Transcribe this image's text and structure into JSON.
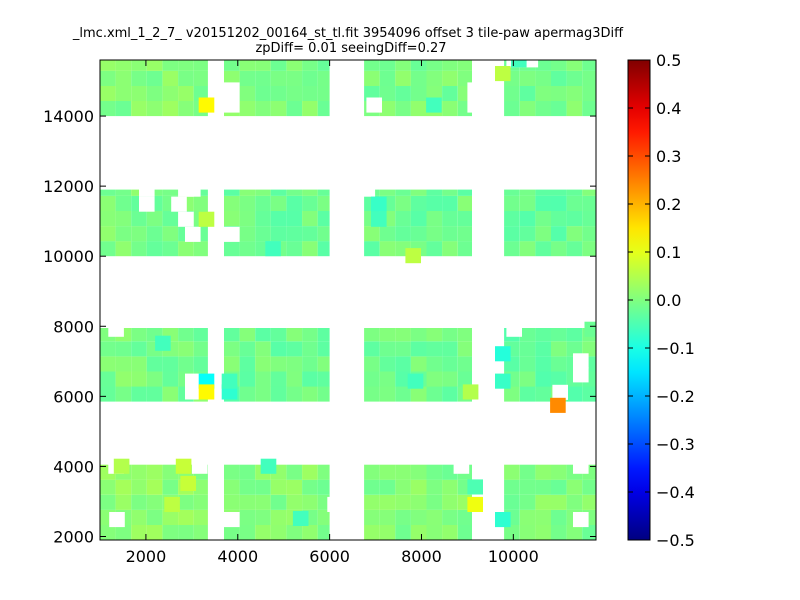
{
  "chart_data": {
    "type": "heatmap",
    "title": "_lmc.xml_1_2_7_ v20151202_00164_st_tl.fit 3954096 offset 3 tile-paw apermag3Diff",
    "subtitle": "zpDiff= 0.01 seeingDiff=0.27",
    "xlabel": "",
    "ylabel": "",
    "xlim": [
      1000,
      11800
    ],
    "ylim": [
      1900,
      15600
    ],
    "x_ticks": [
      2000,
      4000,
      6000,
      8000,
      10000
    ],
    "y_ticks": [
      2000,
      4000,
      6000,
      8000,
      10000,
      12000,
      14000
    ],
    "colorbar": {
      "colormap": "jet",
      "vmin": -0.5,
      "vmax": 0.5,
      "ticks": [
        "0.5",
        "0.4",
        "0.3",
        "0.2",
        "0.1",
        "0.0",
        "−0.1",
        "−0.2",
        "−0.3",
        "−0.4",
        "−0.5"
      ]
    },
    "bin_size": [
      340,
      430
    ],
    "block_rows": [
      {
        "y_range": [
          14000,
          15600
        ],
        "baseline": 0.0
      },
      {
        "y_range": [
          10000,
          11900
        ],
        "baseline": -0.02
      },
      {
        "y_range": [
          5850,
          7950
        ],
        "baseline": -0.02
      },
      {
        "y_range": [
          1900,
          4050
        ],
        "baseline": 0.02
      }
    ],
    "block_cols": [
      {
        "x_range": [
          1000,
          3350
        ],
        "baseline": 0.01
      },
      {
        "x_range": [
          3700,
          6000
        ],
        "baseline": -0.01
      },
      {
        "x_range": [
          6750,
          9100
        ],
        "baseline": -0.01
      },
      {
        "x_range": [
          9800,
          11800
        ],
        "baseline": -0.02
      }
    ],
    "missing_bins": [
      {
        "x": 1850,
        "y": 11700
      },
      {
        "x": 1850,
        "y": 11270
      },
      {
        "x": 2700,
        "y": 11700
      },
      {
        "x": 2700,
        "y": 10840
      },
      {
        "x": 2850,
        "y": 10410
      },
      {
        "x": 3700,
        "y": 10410
      },
      {
        "x": 2550,
        "y": 11270
      },
      {
        "x": 2850,
        "y": 11700
      },
      {
        "x": 1180,
        "y": 7700
      },
      {
        "x": 2850,
        "y": 6220
      },
      {
        "x": 2850,
        "y": 5910
      },
      {
        "x": 1180,
        "y": 3790
      },
      {
        "x": 3000,
        "y": 3790
      },
      {
        "x": 1200,
        "y": 2270
      },
      {
        "x": 5950,
        "y": 2700
      },
      {
        "x": 6150,
        "y": 2270
      },
      {
        "x": 6150,
        "y": 2700
      },
      {
        "x": 3700,
        "y": 2270
      },
      {
        "x": 3700,
        "y": 14100
      },
      {
        "x": 3700,
        "y": 14530
      },
      {
        "x": 6800,
        "y": 14100
      },
      {
        "x": 9000,
        "y": 14100
      },
      {
        "x": 9000,
        "y": 14530
      },
      {
        "x": 9450,
        "y": 15390
      },
      {
        "x": 9850,
        "y": 15390
      },
      {
        "x": 10200,
        "y": 15390
      },
      {
        "x": 6650,
        "y": 11700
      },
      {
        "x": 9150,
        "y": 10840
      },
      {
        "x": 9150,
        "y": 11270
      },
      {
        "x": 9850,
        "y": 7700
      },
      {
        "x": 10850,
        "y": 5900
      },
      {
        "x": 11300,
        "y": 6400
      },
      {
        "x": 11300,
        "y": 6800
      },
      {
        "x": 9150,
        "y": 7300
      },
      {
        "x": 9150,
        "y": 6800
      },
      {
        "x": 8700,
        "y": 3790
      },
      {
        "x": 9100,
        "y": 3790
      },
      {
        "x": 11300,
        "y": 2270
      },
      {
        "x": 11300,
        "y": 3790
      },
      {
        "x": 9450,
        "y": 2270
      },
      {
        "x": 9450,
        "y": 2700
      },
      {
        "x": 9150,
        "y": 2270
      },
      {
        "x": 9150,
        "y": 2700
      }
    ],
    "outlier_bins": [
      {
        "x": 3150,
        "y": 14100,
        "value": 0.13
      },
      {
        "x": 3150,
        "y": 10840,
        "value": 0.06
      },
      {
        "x": 3150,
        "y": 6220,
        "value": -0.12
      },
      {
        "x": 3150,
        "y": 5910,
        "value": 0.13
      },
      {
        "x": 3650,
        "y": 5910,
        "value": -0.08
      },
      {
        "x": 3650,
        "y": 6220,
        "value": -0.06
      },
      {
        "x": 4500,
        "y": 3790,
        "value": -0.06
      },
      {
        "x": 7650,
        "y": 9800,
        "value": 0.06
      },
      {
        "x": 6900,
        "y": 10840,
        "value": -0.06
      },
      {
        "x": 6900,
        "y": 11270,
        "value": -0.07
      },
      {
        "x": 7700,
        "y": 6220,
        "value": -0.06
      },
      {
        "x": 8100,
        "y": 14100,
        "value": -0.06
      },
      {
        "x": 8900,
        "y": 5910,
        "value": 0.05
      },
      {
        "x": 9000,
        "y": 2700,
        "value": 0.11
      },
      {
        "x": 9000,
        "y": 3200,
        "value": -0.05
      },
      {
        "x": 9600,
        "y": 7000,
        "value": -0.09
      },
      {
        "x": 9600,
        "y": 6220,
        "value": -0.07
      },
      {
        "x": 9600,
        "y": 2270,
        "value": -0.08
      },
      {
        "x": 9600,
        "y": 15000,
        "value": 0.06
      },
      {
        "x": 9950,
        "y": 15390,
        "value": -0.06
      },
      {
        "x": 10800,
        "y": 5530,
        "value": 0.24
      },
      {
        "x": 11550,
        "y": 7700,
        "value": -0.02
      },
      {
        "x": 2750,
        "y": 3300,
        "value": 0.07
      },
      {
        "x": 2650,
        "y": 3790,
        "value": 0.07
      },
      {
        "x": 1300,
        "y": 3790,
        "value": 0.05
      },
      {
        "x": 2400,
        "y": 2700,
        "value": 0.06
      },
      {
        "x": 5200,
        "y": 2300,
        "value": -0.06
      },
      {
        "x": 2200,
        "y": 7300,
        "value": -0.06
      },
      {
        "x": 4600,
        "y": 10000,
        "value": -0.06
      }
    ]
  }
}
